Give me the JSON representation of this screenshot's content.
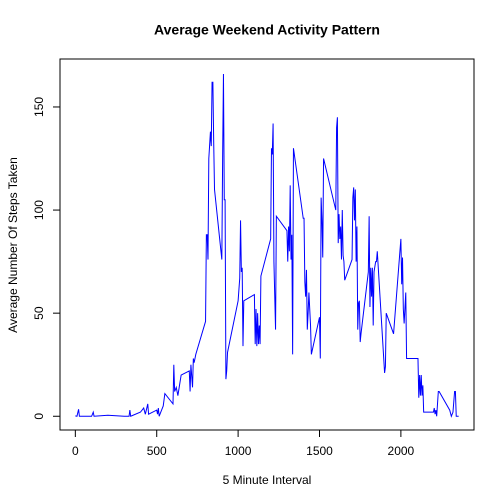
{
  "chart_data": {
    "type": "line",
    "title": "Average Weekend Activity Pattern",
    "xlabel": "5 Minute Interval",
    "ylabel": "Average Number Of Steps Taken",
    "color": "#0000ff",
    "x": [
      0,
      10,
      20,
      25,
      100,
      110,
      115,
      200,
      300,
      330,
      335,
      340,
      400,
      420,
      430,
      445,
      450,
      500,
      505,
      510,
      515,
      530,
      540,
      550,
      600,
      605,
      610,
      620,
      630,
      650,
      700,
      705,
      710,
      720,
      725,
      730,
      740,
      800,
      805,
      810,
      815,
      820,
      830,
      835,
      840,
      845,
      850,
      855,
      900,
      905,
      910,
      915,
      920,
      925,
      930,
      935,
      1000,
      1010,
      1015,
      1020,
      1025,
      1030,
      1035,
      1100,
      1105,
      1110,
      1115,
      1120,
      1125,
      1130,
      1135,
      1140,
      1200,
      1205,
      1210,
      1215,
      1220,
      1230,
      1235,
      1300,
      1305,
      1310,
      1315,
      1320,
      1325,
      1330,
      1335,
      1340,
      1400,
      1405,
      1410,
      1415,
      1420,
      1425,
      1430,
      1435,
      1445,
      1450,
      1500,
      1505,
      1510,
      1515,
      1520,
      1525,
      1600,
      1605,
      1610,
      1615,
      1620,
      1625,
      1630,
      1635,
      1640,
      1645,
      1650,
      1655,
      1700,
      1705,
      1710,
      1715,
      1720,
      1725,
      1730,
      1735,
      1740,
      1745,
      1750,
      1755,
      1800,
      1805,
      1810,
      1815,
      1820,
      1825,
      1830,
      1835,
      1845,
      1850,
      1855,
      1900,
      1905,
      1910,
      1955,
      2000,
      2005,
      2010,
      2015,
      2020,
      2030,
      2035,
      2100,
      2105,
      2110,
      2115,
      2120,
      2125,
      2130,
      2135,
      2140,
      2200,
      2205,
      2210,
      2215,
      2220,
      2230,
      2235,
      2300,
      2310,
      2320,
      2330,
      2335,
      2340,
      2355
    ],
    "values": [
      0.2,
      0,
      3.4,
      0,
      0,
      2,
      0,
      0.5,
      0,
      0,
      3,
      0,
      2,
      4,
      1,
      6,
      1,
      3,
      1,
      4,
      0,
      3,
      5,
      11,
      6,
      25,
      12,
      14,
      10,
      20,
      22,
      12,
      25,
      14,
      28,
      26,
      30,
      46,
      88,
      88,
      76,
      125,
      138,
      131,
      162,
      162,
      133,
      110,
      76,
      126,
      166,
      105,
      105,
      18,
      22,
      31,
      56,
      67,
      95,
      70,
      72,
      34,
      56,
      59,
      35,
      52,
      34,
      50,
      35,
      44,
      35,
      68,
      86,
      130,
      127,
      142,
      75,
      42,
      97,
      90,
      75,
      92,
      80,
      112,
      76,
      88,
      30,
      130,
      96,
      96,
      65,
      58,
      71,
      42,
      50,
      60,
      44,
      30,
      48,
      28,
      106,
      95,
      77,
      125,
      100,
      140,
      145,
      84,
      98,
      86,
      92,
      76,
      100,
      78,
      75,
      66,
      76,
      106,
      111,
      95,
      110,
      75,
      92,
      42,
      55,
      56,
      36,
      40,
      70,
      97,
      53,
      72,
      58,
      72,
      44,
      70,
      75,
      75,
      80,
      21,
      24,
      50,
      40,
      86,
      64,
      77,
      52,
      45,
      60,
      28,
      28,
      28,
      9,
      20,
      10,
      20,
      10,
      15,
      2,
      2,
      4,
      1,
      3,
      0,
      12,
      12,
      3,
      0,
      2,
      12,
      12,
      0,
      0
    ],
    "xlim": [
      -94.2,
      2449.2
    ],
    "ylim": [
      -6.664,
      173.264
    ],
    "xticks": [
      0,
      500,
      1000,
      1500,
      2000
    ],
    "yticks": [
      0,
      50,
      100,
      150
    ]
  }
}
